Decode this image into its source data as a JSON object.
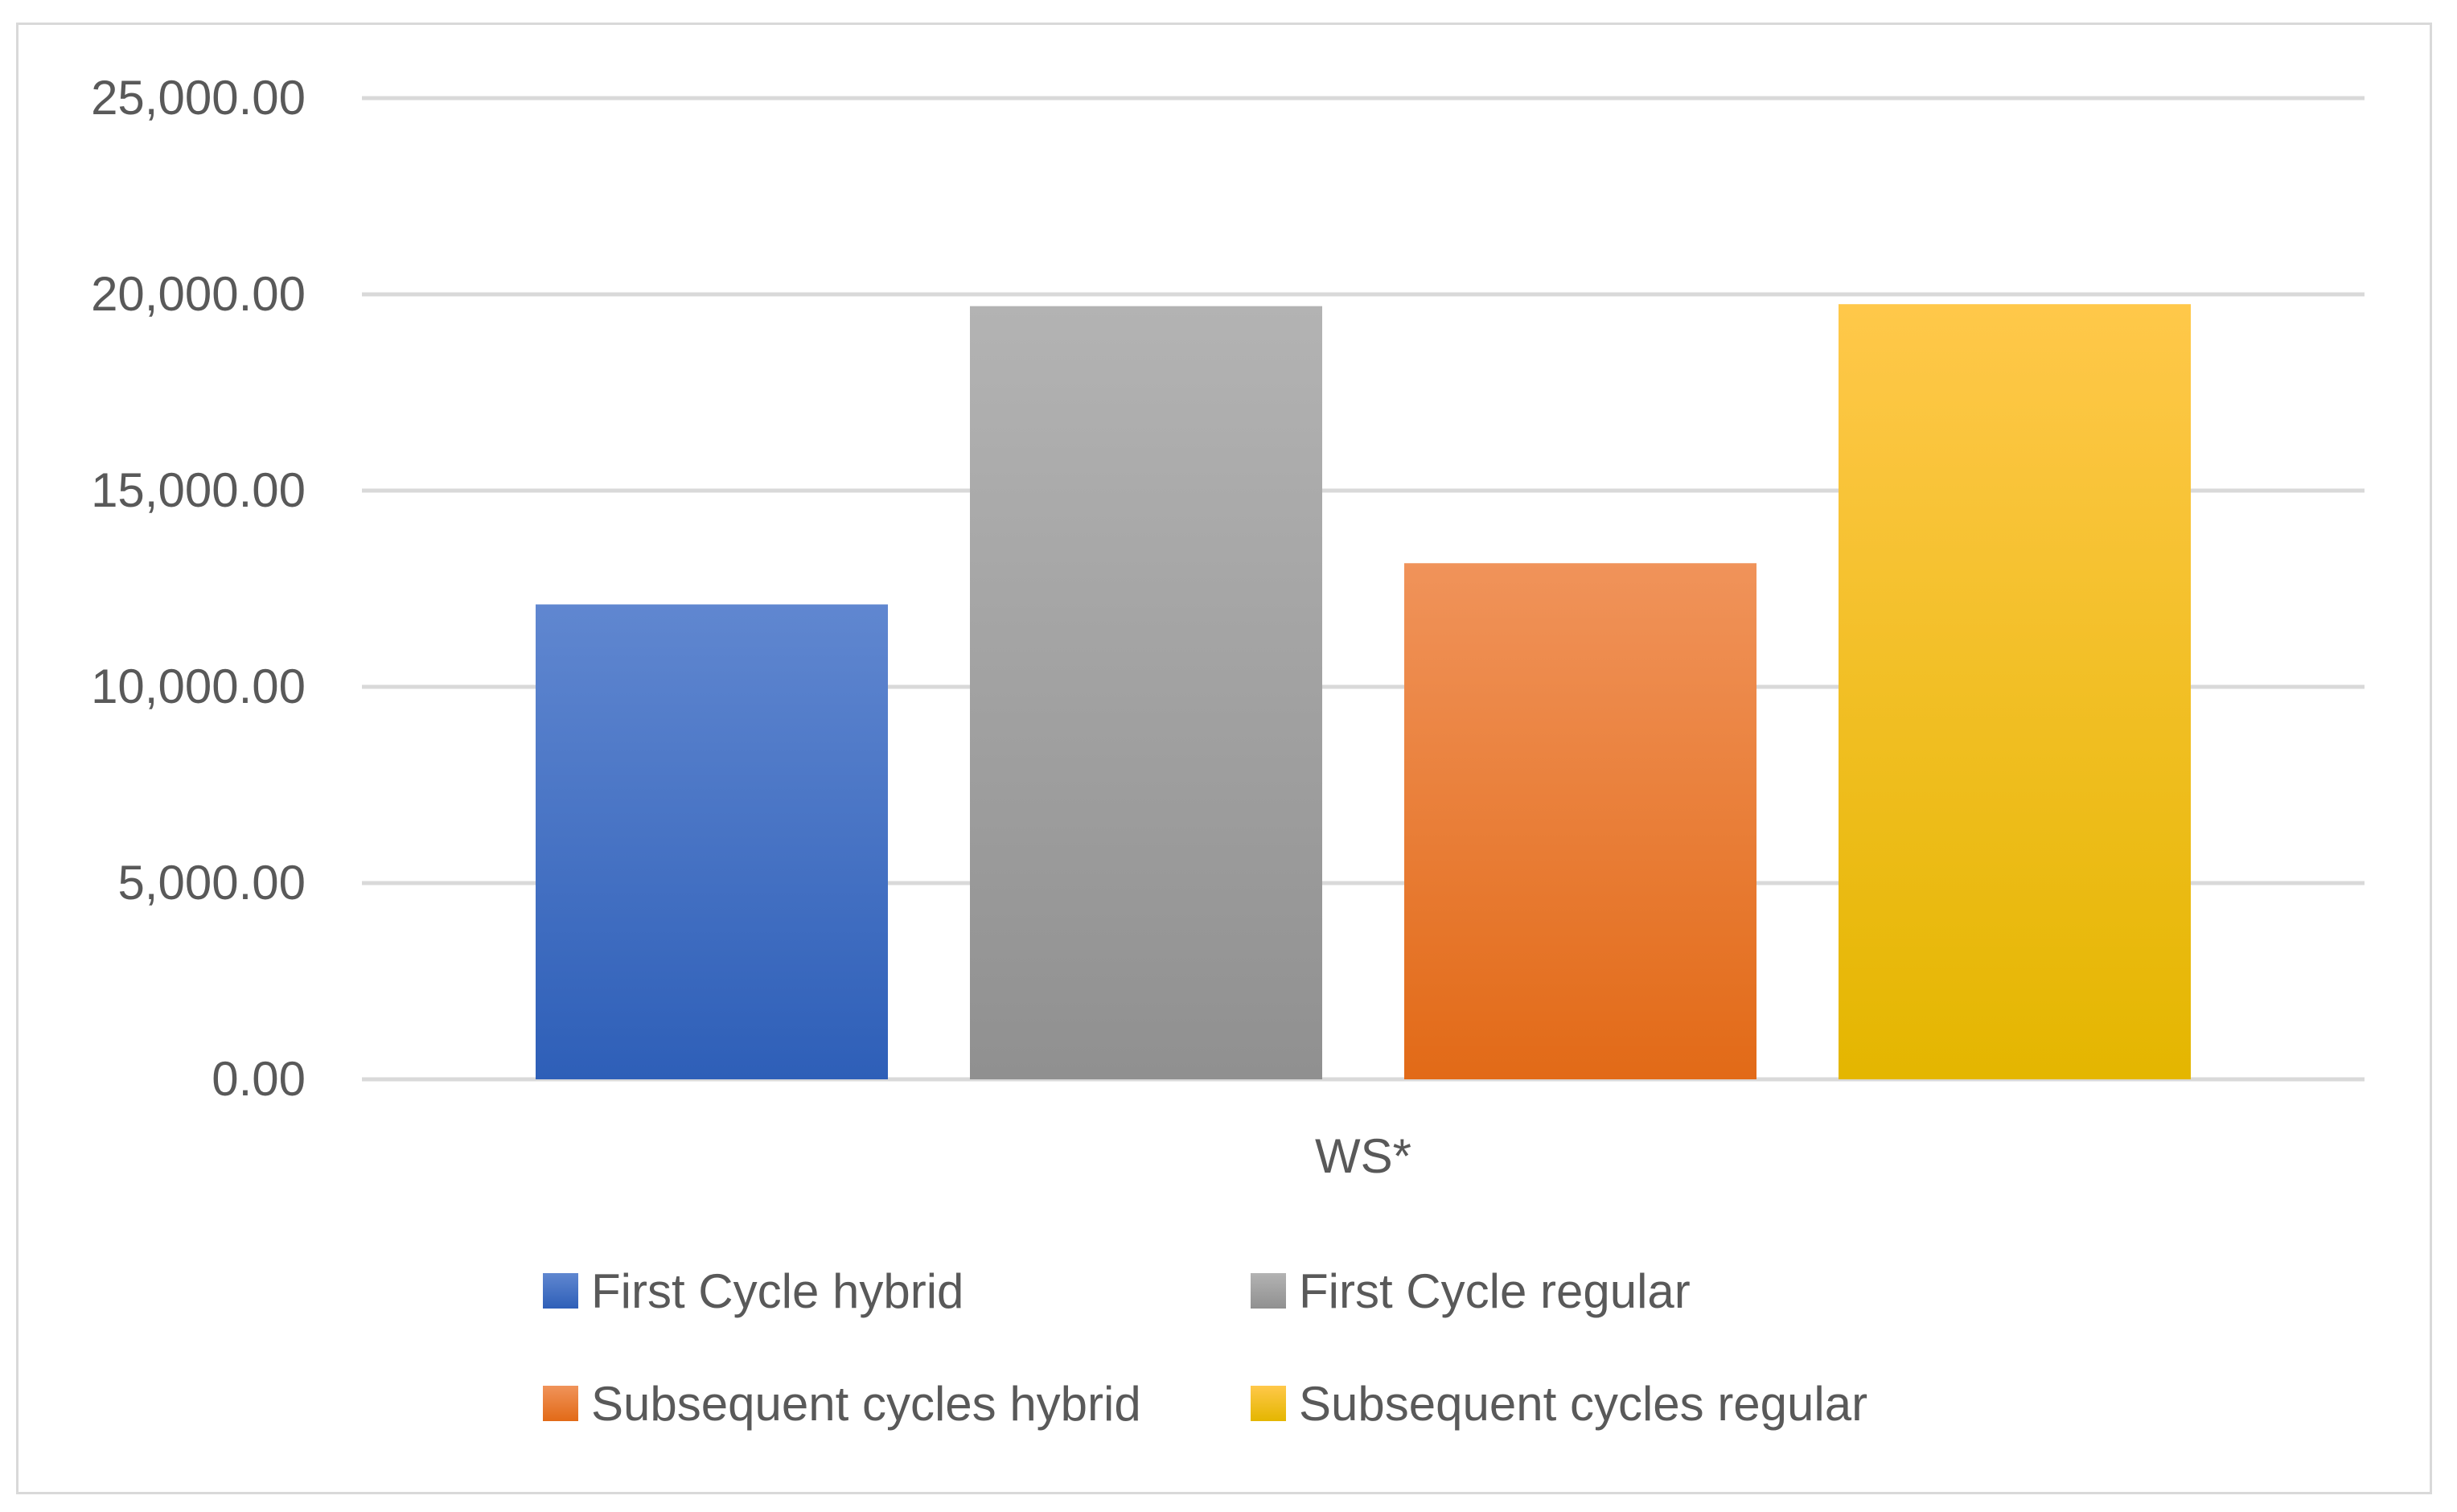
{
  "chart_data": {
    "type": "bar",
    "categories": [
      "WS*"
    ],
    "series": [
      {
        "name": "First Cycle hybrid",
        "values": [
          12100
        ],
        "color": "#4472C4",
        "gradient": [
          "#6087d0",
          "#2e5fb8"
        ]
      },
      {
        "name": "First Cycle regular",
        "values": [
          19700
        ],
        "color": "#A5A5A5",
        "gradient": [
          "#b3b3b3",
          "#909090"
        ]
      },
      {
        "name": "Subsequent cycles hybrid",
        "values": [
          13150
        ],
        "color": "#ED7D31",
        "gradient": [
          "#f0935a",
          "#e26a17"
        ]
      },
      {
        "name": "Subsequent cycles regular",
        "values": [
          19750
        ],
        "color": "#FFC000",
        "gradient": [
          "#ffc84a",
          "#e4b600"
        ]
      }
    ],
    "ylim": [
      0,
      25000
    ],
    "yticks": [
      0,
      5000,
      10000,
      15000,
      20000,
      25000
    ],
    "ytick_labels": [
      "0.00",
      "5,000.00",
      "10,000.00",
      "15,000.00",
      "20,000.00",
      "25,000.00"
    ],
    "title": "",
    "xlabel": "",
    "ylabel": "",
    "grid": true,
    "gridline_color": "#d9d9d9",
    "legend_position": "bottom"
  }
}
